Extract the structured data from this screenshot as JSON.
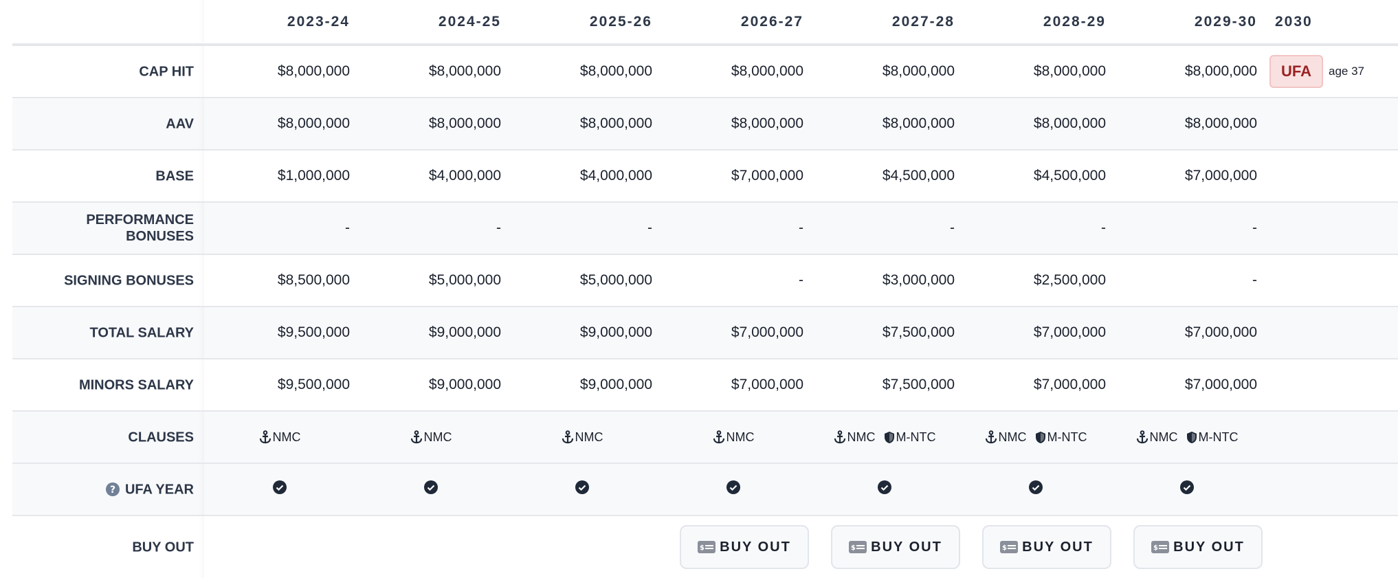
{
  "header": {
    "seasons": [
      "2023-24",
      "2024-25",
      "2025-26",
      "2026-27",
      "2027-28",
      "2028-29",
      "2029-30",
      "2030"
    ]
  },
  "rows": {
    "cap_hit": {
      "label": "CAP HIT",
      "values": [
        "$8,000,000",
        "$8,000,000",
        "$8,000,000",
        "$8,000,000",
        "$8,000,000",
        "$8,000,000",
        "$8,000,000"
      ]
    },
    "aav": {
      "label": "AAV",
      "values": [
        "$8,000,000",
        "$8,000,000",
        "$8,000,000",
        "$8,000,000",
        "$8,000,000",
        "$8,000,000",
        "$8,000,000"
      ]
    },
    "base": {
      "label": "BASE",
      "values": [
        "$1,000,000",
        "$4,000,000",
        "$4,000,000",
        "$7,000,000",
        "$4,500,000",
        "$4,500,000",
        "$7,000,000"
      ]
    },
    "performance_bonuses": {
      "label_line1": "PERFORMANCE",
      "label_line2": "BONUSES",
      "values": [
        "-",
        "-",
        "-",
        "-",
        "-",
        "-",
        "-"
      ]
    },
    "signing_bonuses": {
      "label": "SIGNING BONUSES",
      "values": [
        "$8,500,000",
        "$5,000,000",
        "$5,000,000",
        "-",
        "$3,000,000",
        "$2,500,000",
        "-"
      ]
    },
    "total_salary": {
      "label": "TOTAL SALARY",
      "values": [
        "$9,500,000",
        "$9,000,000",
        "$9,000,000",
        "$7,000,000",
        "$7,500,000",
        "$7,000,000",
        "$7,000,000"
      ]
    },
    "minors_salary": {
      "label": "MINORS SALARY",
      "values": [
        "$9,500,000",
        "$9,000,000",
        "$9,000,000",
        "$7,000,000",
        "$7,500,000",
        "$7,000,000",
        "$7,000,000"
      ]
    },
    "clauses": {
      "label": "CLAUSES",
      "nmc": "NMC",
      "mntc": "M-NTC",
      "has_mntc": [
        false,
        false,
        false,
        false,
        true,
        true,
        true
      ]
    },
    "ufa_year": {
      "label": "UFA YEAR",
      "checked": [
        true,
        true,
        true,
        true,
        true,
        true,
        true
      ]
    },
    "buy_out": {
      "label": "BUY OUT",
      "button_label": "BUY OUT",
      "available": [
        false,
        false,
        false,
        true,
        true,
        true,
        true
      ]
    }
  },
  "ufa_status": {
    "badge": "UFA",
    "age": "age 37",
    "badge_color": "#9b2222"
  }
}
